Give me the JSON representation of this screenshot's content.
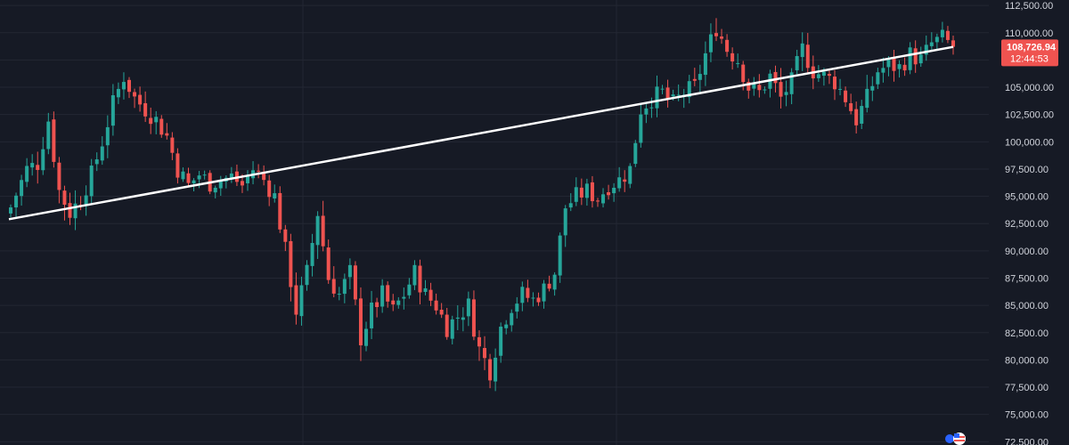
{
  "chart_data": {
    "type": "candlestick",
    "title": "",
    "xlabel": "",
    "ylabel": "",
    "ylim": [
      72500,
      113000
    ],
    "y_ticks": [
      {
        "value": 72500,
        "label": "72,500.00"
      },
      {
        "value": 75000,
        "label": "75,000.00"
      },
      {
        "value": 77500,
        "label": "77,500.00"
      },
      {
        "value": 80000,
        "label": "80,000.00"
      },
      {
        "value": 82500,
        "label": "82,500.00"
      },
      {
        "value": 85000,
        "label": "85,000.00"
      },
      {
        "value": 87500,
        "label": "87,500.00"
      },
      {
        "value": 90000,
        "label": "90,000.00"
      },
      {
        "value": 92500,
        "label": "92,500.00"
      },
      {
        "value": 95000,
        "label": "95,000.00"
      },
      {
        "value": 97500,
        "label": "97,500.00"
      },
      {
        "value": 100000,
        "label": "100,000.00"
      },
      {
        "value": 102500,
        "label": "102,500.00"
      },
      {
        "value": 105000,
        "label": "105,000.00"
      },
      {
        "value": 107500,
        "label": "107,500.00"
      },
      {
        "value": 110000,
        "label": "110,000.00"
      },
      {
        "value": 112500,
        "label": "112,500.00"
      }
    ],
    "current_price": {
      "value": 108726.94,
      "label": "108,726.94",
      "countdown": "12:44:53"
    },
    "trendline": {
      "start_value": 92900,
      "end_value": 108700
    },
    "grid": true,
    "colors": {
      "background": "#161a25",
      "up": "#26a69a",
      "down": "#ef5350",
      "grid": "#232733",
      "trendline": "#ffffff",
      "axis_text": "#d1d4dc",
      "badge": "#ef5350"
    },
    "anchors": [
      [
        0,
        94000,
        16
      ],
      [
        3,
        97500,
        22
      ],
      [
        5,
        98000,
        24
      ],
      [
        7,
        102000,
        20
      ],
      [
        9,
        95500,
        28
      ],
      [
        11,
        93500,
        30
      ],
      [
        13,
        94800,
        26
      ],
      [
        15,
        97000,
        20
      ],
      [
        17,
        100000,
        22
      ],
      [
        19,
        103500,
        24
      ],
      [
        21,
        106000,
        22
      ],
      [
        23,
        104000,
        20
      ],
      [
        25,
        103000,
        22
      ],
      [
        27,
        102000,
        24
      ],
      [
        29,
        100500,
        20
      ],
      [
        31,
        97500,
        22
      ],
      [
        33,
        96000,
        18
      ],
      [
        35,
        97000,
        16
      ],
      [
        37,
        96200,
        16
      ],
      [
        39,
        96500,
        14
      ],
      [
        41,
        96800,
        12
      ],
      [
        43,
        96000,
        14
      ],
      [
        45,
        97500,
        16
      ],
      [
        47,
        96500,
        12
      ],
      [
        49,
        95000,
        20
      ],
      [
        51,
        90000,
        30
      ],
      [
        53,
        84500,
        32
      ],
      [
        55,
        88000,
        28
      ],
      [
        57,
        93500,
        30
      ],
      [
        59,
        87500,
        26
      ],
      [
        61,
        86000,
        24
      ],
      [
        63,
        88000,
        22
      ],
      [
        65,
        82000,
        28
      ],
      [
        67,
        84500,
        24
      ],
      [
        69,
        86000,
        22
      ],
      [
        71,
        84500,
        18
      ],
      [
        73,
        86000,
        20
      ],
      [
        75,
        88000,
        20
      ],
      [
        77,
        86000,
        22
      ],
      [
        79,
        85000,
        18
      ],
      [
        81,
        83000,
        20
      ],
      [
        83,
        84000,
        22
      ],
      [
        85,
        85000,
        18
      ],
      [
        87,
        81000,
        26
      ],
      [
        89,
        79000,
        28
      ],
      [
        91,
        83000,
        24
      ],
      [
        93,
        85000,
        20
      ],
      [
        95,
        86000,
        18
      ],
      [
        97,
        85500,
        16
      ],
      [
        99,
        86500,
        16
      ],
      [
        101,
        88000,
        18
      ],
      [
        103,
        94000,
        24
      ],
      [
        105,
        95000,
        18
      ],
      [
        107,
        95500,
        16
      ],
      [
        109,
        94800,
        16
      ],
      [
        111,
        96000,
        18
      ],
      [
        113,
        96500,
        20
      ],
      [
        115,
        97500,
        20
      ],
      [
        117,
        103000,
        26
      ],
      [
        119,
        104000,
        22
      ],
      [
        121,
        104500,
        20
      ],
      [
        123,
        103500,
        20
      ],
      [
        125,
        104500,
        22
      ],
      [
        127,
        105000,
        24
      ],
      [
        129,
        108000,
        24
      ],
      [
        131,
        110500,
        26
      ],
      [
        133,
        108500,
        24
      ],
      [
        135,
        107500,
        22
      ],
      [
        137,
        105000,
        20
      ],
      [
        139,
        104500,
        20
      ],
      [
        141,
        106000,
        18
      ],
      [
        143,
        104000,
        26
      ],
      [
        145,
        105500,
        24
      ],
      [
        147,
        108500,
        26
      ],
      [
        149,
        106500,
        22
      ],
      [
        151,
        106000,
        20
      ],
      [
        153,
        105500,
        20
      ],
      [
        155,
        104000,
        22
      ],
      [
        157,
        102000,
        26
      ],
      [
        159,
        104000,
        28
      ],
      [
        161,
        106500,
        22
      ],
      [
        163,
        107000,
        20
      ],
      [
        165,
        106800,
        18
      ],
      [
        167,
        108000,
        20
      ],
      [
        169,
        107500,
        18
      ],
      [
        171,
        109000,
        20
      ],
      [
        173,
        109500,
        16
      ],
      [
        175,
        108726.94,
        14
      ]
    ]
  }
}
